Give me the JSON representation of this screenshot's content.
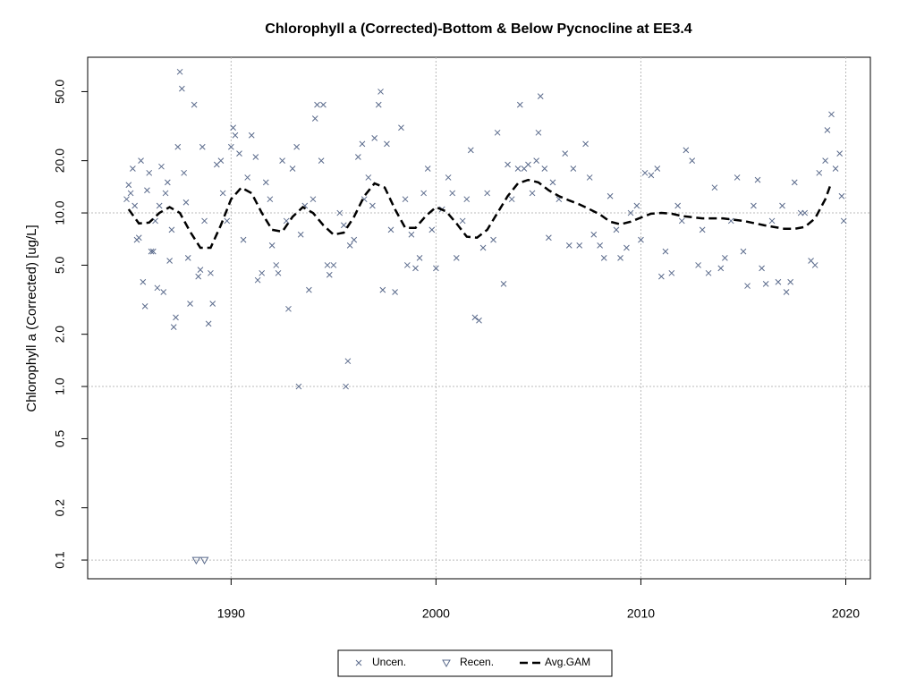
{
  "chart_data": {
    "type": "scatter",
    "title": "Chlorophyll a (Corrected)-Bottom & Below Pycnocline at EE3.4",
    "ylabel": "Chlorophyll a (Corrected) [ug/L]",
    "log_y": true,
    "grid": true,
    "legend": "bottom",
    "xlim": [
      1983.0,
      2021.2
    ],
    "ylim": [
      0.078,
      78.9
    ],
    "xticks": [
      1990,
      2000,
      2010,
      2020
    ],
    "yticks": [
      0.1,
      0.2,
      0.5,
      {
        "value": 1,
        "label": "1.0"
      },
      {
        "value": 2,
        "label": "2.0"
      },
      {
        "value": 5,
        "label": "5.0"
      },
      {
        "value": 10,
        "label": "10.0"
      },
      {
        "value": 20,
        "label": "20.0"
      },
      {
        "value": 50,
        "label": "50.0"
      }
    ],
    "series": [
      {
        "name": "Uncen.",
        "marker": "x",
        "color": "#5b6b8c",
        "x": [
          1984.9,
          1985,
          1985.1,
          1985.2,
          1985.3,
          1985.4,
          1985.5,
          1985.6,
          1985.7,
          1985.8,
          1985.9,
          1986,
          1986.1,
          1986.2,
          1986.3,
          1986.4,
          1986.5,
          1986.6,
          1986.7,
          1986.8,
          1986.9,
          1987,
          1987.1,
          1987.2,
          1987.3,
          1987.4,
          1987.5,
          1987.6,
          1987.7,
          1987.8,
          1987.9,
          1988,
          1988.2,
          1988.4,
          1988.5,
          1988.6,
          1988.7,
          1988.9,
          1989,
          1989.1,
          1989.3,
          1989.5,
          1989.6,
          1989.8,
          1990,
          1990.1,
          1990.2,
          1990.4,
          1990.6,
          1990.8,
          1991,
          1991.2,
          1991.3,
          1991.5,
          1991.7,
          1991.9,
          1992,
          1992.2,
          1992.3,
          1992.5,
          1992.7,
          1992.8,
          1993,
          1993.2,
          1993.3,
          1993.4,
          1993.6,
          1993.8,
          1994,
          1994.1,
          1994.2,
          1994.4,
          1994.5,
          1994.7,
          1994.8,
          1995,
          1995.3,
          1995.5,
          1995.6,
          1995.7,
          1995.8,
          1996,
          1996.2,
          1996.4,
          1996.5,
          1996.7,
          1996.9,
          1997,
          1997.2,
          1997.3,
          1997.4,
          1997.6,
          1997.8,
          1998,
          1998.3,
          1998.5,
          1998.6,
          1998.8,
          1999,
          1999.2,
          1999.4,
          1999.6,
          1999.8,
          2000,
          2000.3,
          2000.6,
          2000.8,
          2001,
          2001.3,
          2001.5,
          2001.7,
          2001.9,
          2002.1,
          2002.3,
          2002.5,
          2002.8,
          2003,
          2003.3,
          2003.5,
          2003.7,
          2004,
          2004.1,
          2004.3,
          2004.5,
          2004.7,
          2004.9,
          2005,
          2005.1,
          2005.3,
          2005.5,
          2005.7,
          2006,
          2006.3,
          2006.5,
          2006.7,
          2007,
          2007.3,
          2007.5,
          2007.7,
          2008,
          2008.2,
          2008.5,
          2008.8,
          2009,
          2009.3,
          2009.5,
          2009.8,
          2010,
          2010.2,
          2010.5,
          2010.8,
          2011,
          2011.2,
          2011.5,
          2011.8,
          2012,
          2012.2,
          2012.5,
          2012.8,
          2013,
          2013.3,
          2013.6,
          2013.9,
          2014.1,
          2014.4,
          2014.7,
          2015,
          2015.2,
          2015.5,
          2015.7,
          2015.9,
          2016.1,
          2016.4,
          2016.7,
          2016.9,
          2017.1,
          2017.3,
          2017.5,
          2017.8,
          2018,
          2018.3,
          2018.5,
          2018.7,
          2019,
          2019.1,
          2019.3,
          2019.5,
          2019.7,
          2019.8,
          2019.9
        ],
        "values": [
          12,
          14.5,
          13,
          18,
          11,
          7,
          7.2,
          20,
          4,
          2.9,
          13.5,
          17,
          6,
          6,
          9,
          3.7,
          11,
          18.5,
          3.5,
          13,
          15,
          5.3,
          8,
          2.2,
          2.5,
          24,
          65,
          52,
          17,
          11.5,
          5.5,
          3,
          42,
          4.3,
          4.7,
          24,
          9,
          2.3,
          4.5,
          3,
          19,
          20,
          13,
          9,
          24,
          31,
          28,
          22,
          7,
          16,
          28,
          21,
          4.1,
          4.5,
          15,
          12,
          6.5,
          5,
          4.5,
          20,
          9,
          2.8,
          18,
          24,
          1,
          7.5,
          11,
          3.6,
          12,
          35,
          42,
          20,
          42,
          5,
          4.4,
          5,
          10,
          8.5,
          1,
          1.4,
          6.5,
          7,
          21,
          25,
          12,
          16,
          11,
          27,
          42,
          50,
          3.6,
          25,
          8,
          3.5,
          31,
          12,
          5,
          7.5,
          4.8,
          5.5,
          13,
          18,
          8,
          4.8,
          10.5,
          16,
          13,
          5.5,
          9,
          12,
          23,
          2.5,
          2.4,
          6.3,
          13,
          7,
          29,
          3.9,
          19,
          12,
          18,
          42,
          18,
          19,
          13,
          20,
          29,
          47,
          18,
          7.2,
          15,
          12,
          22,
          6.5,
          18,
          6.5,
          25,
          16,
          7.5,
          6.5,
          5.5,
          12.5,
          8,
          5.5,
          6.3,
          10,
          11,
          7,
          17,
          16.5,
          18,
          4.3,
          6,
          4.5,
          11,
          9,
          23,
          20,
          5,
          8,
          4.5,
          14,
          4.8,
          5.5,
          9,
          16,
          6,
          3.8,
          11,
          15.5,
          4.8,
          3.9,
          9,
          4,
          11,
          3.5,
          4,
          15,
          10,
          10,
          5.3,
          5,
          17,
          20,
          30,
          37,
          18,
          22,
          12.5,
          9
        ]
      },
      {
        "name": "Recen.",
        "marker": "triangle-down",
        "color": "#5b6b8c",
        "x": [
          1988.3,
          1988.7
        ],
        "values": [
          0.1,
          0.1
        ]
      },
      {
        "name": "Avg.GAM",
        "marker": "dashed-line",
        "color": "#000000",
        "x": [
          1985,
          1985.5,
          1986,
          1986.5,
          1987,
          1987.5,
          1988,
          1988.5,
          1989,
          1989.5,
          1990,
          1990.5,
          1991,
          1991.5,
          1992,
          1992.5,
          1993,
          1993.5,
          1994,
          1994.5,
          1995,
          1995.5,
          1996,
          1996.5,
          1997,
          1997.5,
          1998,
          1998.5,
          1999,
          1999.5,
          2000,
          2000.5,
          2001,
          2001.5,
          2002,
          2002.5,
          2003,
          2003.5,
          2004,
          2004.5,
          2005,
          2005.5,
          2006,
          2006.5,
          2007,
          2007.5,
          2008,
          2008.5,
          2009,
          2009.5,
          2010,
          2010.5,
          2011,
          2011.5,
          2012,
          2013,
          2014,
          2015,
          2016,
          2017,
          2017.5,
          2018,
          2018.5,
          2019,
          2019.3
        ],
        "values": [
          10.5,
          8.7,
          8.8,
          10,
          10.8,
          10,
          7.8,
          6.3,
          6.3,
          8.5,
          12,
          14,
          13,
          10,
          8,
          7.8,
          9.5,
          10.8,
          10,
          8.5,
          7.5,
          7.7,
          9.5,
          12.5,
          14.8,
          14,
          10.5,
          8.2,
          8.2,
          9.6,
          10.8,
          10.2,
          8.7,
          7.3,
          7.2,
          8,
          10,
          12.5,
          14.8,
          15.5,
          15,
          13.5,
          12.5,
          11.8,
          11.2,
          10.5,
          9.8,
          8.9,
          8.6,
          8.9,
          9.4,
          9.9,
          10,
          9.9,
          9.6,
          9.3,
          9.3,
          9.0,
          8.5,
          8.1,
          8.1,
          8.3,
          9.3,
          12,
          15
        ]
      }
    ]
  }
}
